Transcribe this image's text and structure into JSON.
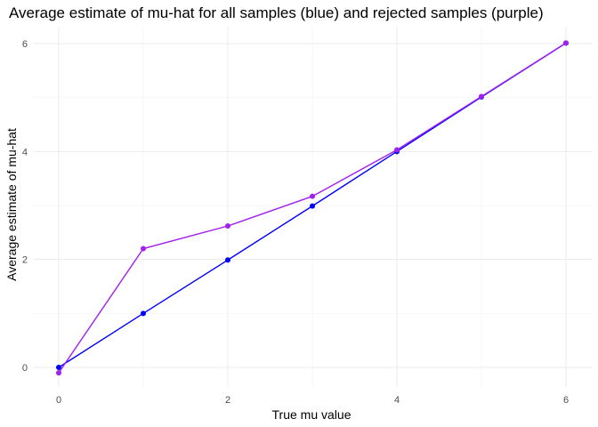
{
  "chart_data": {
    "type": "line",
    "title": "Average estimate of mu-hat for all samples (blue) and rejected samples (purple)",
    "xlabel": "True mu value",
    "ylabel": "Average estimate of mu-hat",
    "xlim": [
      0,
      6
    ],
    "ylim": [
      -0.1,
      6
    ],
    "x_ticks": [
      0,
      2,
      4,
      6
    ],
    "y_ticks": [
      0,
      2,
      4,
      6
    ],
    "grid": true,
    "x": [
      0,
      1,
      2,
      3,
      4,
      5,
      6
    ],
    "series": [
      {
        "values": [
          0.0,
          1.0,
          1.99,
          2.99,
          4.0,
          5.01,
          6.01
        ],
        "color": "#0000ff"
      },
      {
        "values": [
          -0.1,
          2.2,
          2.62,
          3.17,
          4.03,
          5.02,
          6.01
        ],
        "color": "#a020f0"
      }
    ]
  }
}
